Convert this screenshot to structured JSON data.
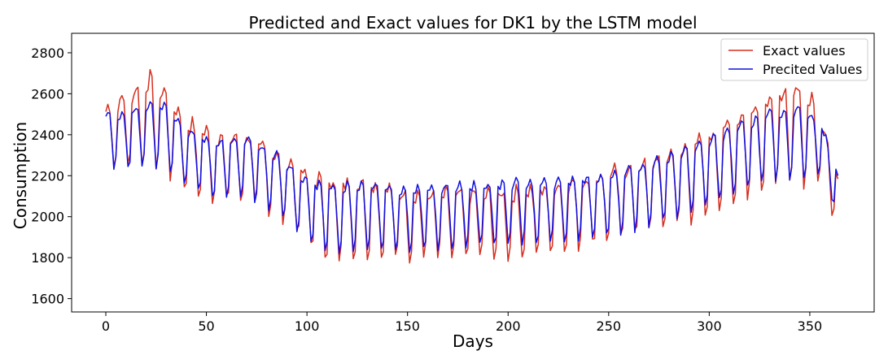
{
  "chart_data": {
    "type": "line",
    "title": "Predicted and Exact values for DK1 by the LSTM model",
    "xlabel": "Days",
    "ylabel": "Consumption",
    "xlim": [
      -17,
      382
    ],
    "ylim": [
      1535,
      2895
    ],
    "xticks": [
      0,
      50,
      100,
      150,
      200,
      250,
      300,
      350
    ],
    "yticks": [
      1600,
      1800,
      2000,
      2200,
      2400,
      2600,
      2800
    ],
    "grid": false,
    "legend_position": "top-right",
    "series": [
      {
        "name": "Exact values",
        "color": "#d62f1f",
        "trend": [
          [
            0,
            2420
          ],
          [
            10,
            2450
          ],
          [
            22,
            2510
          ],
          [
            30,
            2450
          ],
          [
            40,
            2330
          ],
          [
            55,
            2270
          ],
          [
            70,
            2270
          ],
          [
            85,
            2190
          ],
          [
            100,
            2080
          ],
          [
            110,
            2020
          ],
          [
            130,
            2030
          ],
          [
            150,
            1990
          ],
          [
            170,
            1990
          ],
          [
            200,
            1990
          ],
          [
            230,
            2040
          ],
          [
            260,
            2110
          ],
          [
            290,
            2200
          ],
          [
            310,
            2300
          ],
          [
            330,
            2420
          ],
          [
            345,
            2450
          ],
          [
            355,
            2380
          ],
          [
            364,
            2100
          ]
        ],
        "amp": [
          [
            0,
            170
          ],
          [
            22,
            260
          ],
          [
            40,
            210
          ],
          [
            60,
            190
          ],
          [
            80,
            180
          ],
          [
            100,
            210
          ],
          [
            110,
            250
          ],
          [
            150,
            190
          ],
          [
            200,
            190
          ],
          [
            250,
            200
          ],
          [
            300,
            230
          ],
          [
            345,
            290
          ],
          [
            364,
            150
          ]
        ],
        "noise": 30,
        "seed": 7
      },
      {
        "name": "Precited Values",
        "color": "#1010e0",
        "trend": [
          [
            0,
            2400
          ],
          [
            10,
            2400
          ],
          [
            22,
            2440
          ],
          [
            30,
            2420
          ],
          [
            40,
            2320
          ],
          [
            55,
            2260
          ],
          [
            70,
            2270
          ],
          [
            85,
            2190
          ],
          [
            100,
            2070
          ],
          [
            110,
            2020
          ],
          [
            130,
            2040
          ],
          [
            150,
            2020
          ],
          [
            170,
            2030
          ],
          [
            200,
            2050
          ],
          [
            230,
            2060
          ],
          [
            260,
            2110
          ],
          [
            290,
            2210
          ],
          [
            310,
            2300
          ],
          [
            330,
            2380
          ],
          [
            345,
            2400
          ],
          [
            355,
            2370
          ],
          [
            364,
            2130
          ]
        ],
        "amp": [
          [
            0,
            150
          ],
          [
            22,
            190
          ],
          [
            40,
            170
          ],
          [
            60,
            170
          ],
          [
            80,
            170
          ],
          [
            100,
            170
          ],
          [
            110,
            200
          ],
          [
            150,
            180
          ],
          [
            200,
            180
          ],
          [
            250,
            180
          ],
          [
            300,
            190
          ],
          [
            345,
            200
          ],
          [
            364,
            120
          ]
        ],
        "noise": 15,
        "seed": 13
      }
    ]
  }
}
